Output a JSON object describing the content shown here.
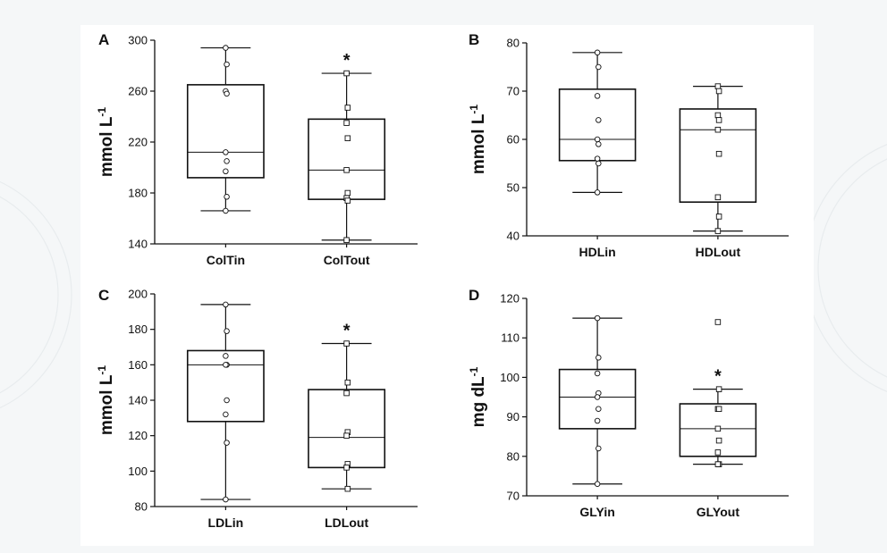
{
  "chart_data": [
    {
      "panel": "A",
      "type": "box",
      "ylabel": "mmol L",
      "ylabel_sup": "-1",
      "ylim": [
        140,
        300
      ],
      "yticks": [
        140,
        180,
        220,
        260,
        300
      ],
      "categories": [
        "ColTin",
        "ColTout"
      ],
      "boxes": [
        {
          "whisker_low": 166,
          "q1": 192,
          "median": 212,
          "q3": 265,
          "whisker_high": 294,
          "points": [
            294,
            281,
            260,
            258,
            212,
            205,
            197,
            177,
            166
          ],
          "marker": "circle",
          "star": false
        },
        {
          "whisker_low": 143,
          "q1": 175,
          "median": 198,
          "q3": 238,
          "whisker_high": 274,
          "points": [
            274,
            247,
            235,
            223,
            198,
            180,
            176,
            174,
            143
          ],
          "marker": "square",
          "star": true
        }
      ]
    },
    {
      "panel": "B",
      "type": "box",
      "ylabel": "mmol L",
      "ylabel_sup": "-1",
      "ylim": [
        40,
        80
      ],
      "yticks": [
        40,
        50,
        60,
        70,
        80
      ],
      "categories": [
        "HDLin",
        "HDLout"
      ],
      "boxes": [
        {
          "whisker_low": 49,
          "q1": 55.6,
          "median": 60,
          "q3": 70.4,
          "whisker_high": 78,
          "points": [
            78,
            75,
            69,
            64,
            60,
            59,
            56,
            55,
            49
          ],
          "marker": "circle",
          "star": false
        },
        {
          "whisker_low": 41,
          "q1": 47,
          "median": 62,
          "q3": 66.3,
          "whisker_high": 71,
          "points": [
            71,
            70,
            65,
            64,
            62,
            57,
            48,
            44,
            41
          ],
          "marker": "square",
          "star": false
        }
      ]
    },
    {
      "panel": "C",
      "type": "box",
      "ylabel": "mmol L",
      "ylabel_sup": "-1",
      "ylim": [
        80,
        200
      ],
      "yticks": [
        80,
        100,
        120,
        140,
        160,
        180,
        200
      ],
      "categories": [
        "LDLin",
        "LDLout"
      ],
      "boxes": [
        {
          "whisker_low": 84,
          "q1": 128,
          "median": 160,
          "q3": 168,
          "whisker_high": 194,
          "points": [
            194,
            179,
            165,
            160,
            160,
            140,
            132,
            116,
            84
          ],
          "marker": "circle",
          "star": false
        },
        {
          "whisker_low": 90,
          "q1": 102,
          "median": 119,
          "q3": 146,
          "whisker_high": 172,
          "points": [
            172,
            150,
            144,
            122,
            120,
            104,
            102,
            90
          ],
          "marker": "square",
          "star": true
        }
      ]
    },
    {
      "panel": "D",
      "type": "box",
      "ylabel": "mg dL",
      "ylabel_sup": "-1",
      "ylim": [
        70,
        120
      ],
      "yticks": [
        70,
        80,
        90,
        100,
        110,
        120
      ],
      "categories": [
        "GLYin",
        "GLYout"
      ],
      "boxes": [
        {
          "whisker_low": 73,
          "q1": 87,
          "median": 95,
          "q3": 102,
          "whisker_high": 115,
          "points": [
            115,
            105,
            101,
            96,
            95,
            92,
            89,
            82,
            73
          ],
          "marker": "circle",
          "star": false
        },
        {
          "whisker_low": 78,
          "q1": 80,
          "median": 87,
          "q3": 93.3,
          "whisker_high": 97,
          "points": [
            114,
            97,
            92,
            92,
            87,
            84,
            81,
            78,
            78
          ],
          "marker": "square",
          "star": true
        }
      ]
    }
  ],
  "significance_marker": "*",
  "colors": {
    "page_bg": "#f5f7f8",
    "panel_bg": "#ffffff",
    "ink": "#111111",
    "marker_fill": "#ffffff"
  }
}
